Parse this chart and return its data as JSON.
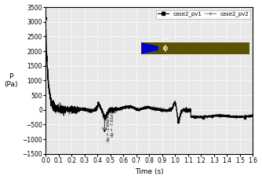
{
  "title": "",
  "xlabel": "Time (s)",
  "ylabel": "P\n(Pa)",
  "xlim": [
    0.0,
    1.6
  ],
  "ylim": [
    -1500,
    3500
  ],
  "yticks": [
    -1500,
    -1000,
    -500,
    0,
    500,
    1000,
    1500,
    2000,
    2500,
    3000,
    3500
  ],
  "xticks": [
    0.0,
    0.1,
    0.2,
    0.3,
    0.4,
    0.5,
    0.6,
    0.7,
    0.8,
    0.9,
    1.0,
    1.1,
    1.2,
    1.3,
    1.4,
    1.5,
    1.6
  ],
  "legend_labels": [
    "case2_pv1",
    "case2_pv2"
  ],
  "line1_color": "black",
  "line2_color": "#888888",
  "background_color": "#e8e8e8",
  "inset_bg_color": "#0000cc",
  "inset_duct_color": "#5a5200",
  "figsize": [
    3.34,
    2.29
  ],
  "dpi": 100
}
